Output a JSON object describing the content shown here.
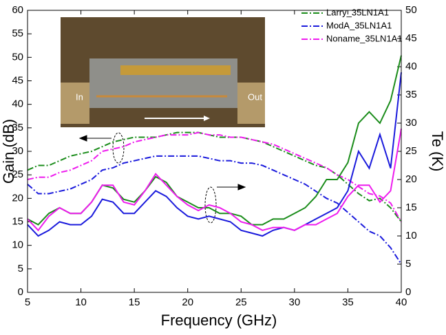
{
  "chart_data": {
    "type": "line",
    "xlabel": "Frequency (GHz)",
    "ylabel": "Gain (dB)",
    "y2label": "Te (K)",
    "x": [
      5,
      6,
      7,
      8,
      9,
      10,
      11,
      12,
      13,
      14,
      15,
      16,
      17,
      18,
      19,
      20,
      21,
      22,
      23,
      24,
      25,
      26,
      27,
      28,
      29,
      30,
      31,
      32,
      33,
      34,
      35,
      36,
      37,
      38,
      39,
      40
    ],
    "xlim": [
      5,
      40
    ],
    "xticks": [
      5,
      10,
      15,
      20,
      25,
      30,
      35,
      40
    ],
    "ylim": [
      0,
      60
    ],
    "yticks": [
      0,
      5,
      10,
      15,
      20,
      25,
      30,
      35,
      40,
      45,
      50,
      55,
      60
    ],
    "y2lim": [
      0,
      50
    ],
    "y2ticks": [
      0,
      5,
      10,
      15,
      20,
      25,
      30,
      35,
      40,
      45,
      50
    ],
    "legend": "upper right",
    "inset_labels": [
      "In",
      "Out"
    ],
    "series": [
      {
        "name": "Larry_35LN1A1",
        "color": "#1a8c1a",
        "linestyle": "dashdot",
        "values": [
          26,
          27,
          27,
          28,
          29,
          29.5,
          30,
          31,
          32,
          32.5,
          33,
          33,
          33,
          33.5,
          34,
          34,
          34,
          33.5,
          33,
          33,
          33,
          32.5,
          32,
          31,
          30,
          29,
          28,
          27,
          26.5,
          25,
          23,
          21,
          19.5,
          20,
          18,
          15
        ]
      },
      {
        "name": "ModA_35LN1A1",
        "color": "#1a1adc",
        "linestyle": "dashdot",
        "values": [
          23,
          21,
          21,
          21.5,
          22,
          23,
          24,
          26,
          26.5,
          27.5,
          28,
          28.5,
          29,
          29,
          29,
          29,
          29,
          28.5,
          28,
          28,
          27.5,
          27.5,
          27,
          26,
          25,
          24,
          23,
          21.5,
          20,
          19,
          17,
          15,
          13,
          12,
          9.5,
          6
        ]
      },
      {
        "name": "Noname_35LN1A1",
        "color": "#ee1aee",
        "linestyle": "dashdot",
        "values": [
          24,
          24.5,
          24.5,
          25.5,
          26,
          27,
          28,
          30,
          30.5,
          31,
          32,
          32.5,
          33,
          33.5,
          33.5,
          33.5,
          34,
          33.5,
          33.5,
          33,
          33,
          32.5,
          32,
          31.5,
          30.5,
          29.5,
          28.5,
          27.5,
          26.5,
          25,
          24,
          22.5,
          21,
          20.5,
          19,
          15
        ]
      },
      {
        "color": "#1a8c1a",
        "linestyle": "solid",
        "axis": "y2",
        "values": [
          13,
          12,
          14,
          15,
          14,
          14,
          16,
          19,
          18.5,
          16.5,
          16,
          18,
          20.5,
          19.5,
          17,
          16,
          15,
          15,
          14,
          14,
          13.5,
          12,
          12,
          13,
          13,
          14,
          15,
          17,
          20,
          20,
          23,
          30,
          32,
          30,
          34,
          42
        ]
      },
      {
        "color": "#1a1adc",
        "linestyle": "solid",
        "axis": "y2",
        "values": [
          12,
          10,
          11,
          12.5,
          12,
          12,
          13.5,
          16.5,
          16,
          14,
          14,
          16,
          18,
          17,
          15,
          13.5,
          13,
          13.5,
          13,
          12.5,
          11,
          10.5,
          10,
          11,
          11.5,
          11,
          12,
          13,
          14,
          15,
          18,
          25,
          22,
          28,
          22,
          39
        ]
      },
      {
        "color": "#ee1aee",
        "linestyle": "solid",
        "axis": "y2",
        "values": [
          13,
          11,
          13.5,
          15,
          14,
          14,
          16,
          19,
          19,
          16,
          15.5,
          18,
          21,
          19,
          17,
          15.5,
          14.5,
          15.5,
          15,
          14,
          12.5,
          12,
          11,
          11.5,
          11.5,
          11,
          12,
          12,
          13,
          14,
          17,
          19,
          19,
          16,
          18,
          29
        ]
      }
    ]
  }
}
